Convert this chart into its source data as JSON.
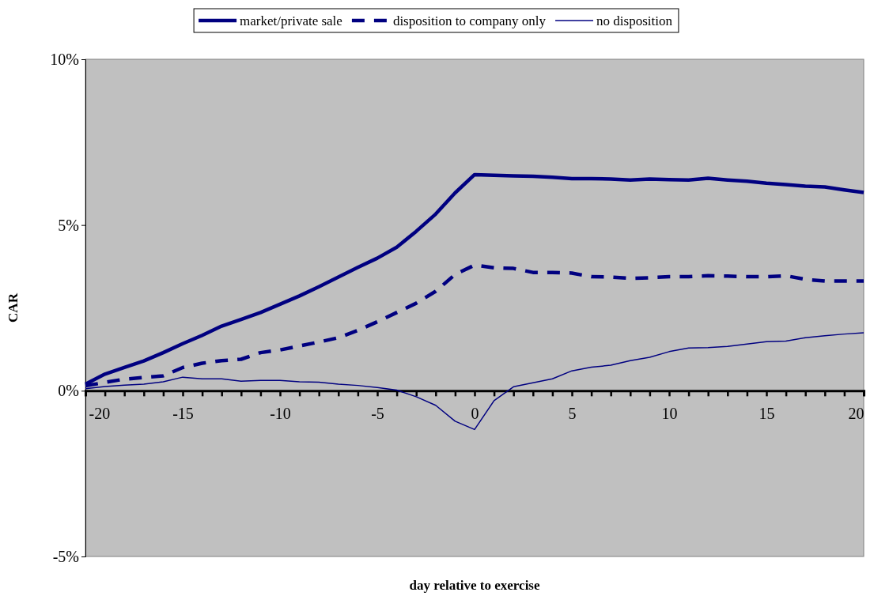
{
  "chart_data": {
    "type": "line",
    "xlabel": "day relative to exercise",
    "ylabel": "CAR",
    "x": [
      -20,
      -19,
      -18,
      -17,
      -16,
      -15,
      -14,
      -13,
      -12,
      -11,
      -10,
      -9,
      -8,
      -7,
      -6,
      -5,
      -4,
      -3,
      -2,
      -1,
      0,
      1,
      2,
      3,
      4,
      5,
      6,
      7,
      8,
      9,
      10,
      11,
      12,
      13,
      14,
      15,
      16,
      17,
      18,
      19,
      20
    ],
    "series": [
      {
        "name": "market/private sale",
        "color": "#000080",
        "line_style": "solid",
        "values": [
          0.2,
          0.5,
          0.7,
          0.9,
          1.15,
          1.42,
          1.67,
          1.95,
          2.15,
          2.36,
          2.61,
          2.86,
          3.14,
          3.43,
          3.72,
          4.0,
          4.33,
          4.81,
          5.33,
          5.97,
          6.52,
          6.5,
          6.48,
          6.47,
          6.44,
          6.4,
          6.4,
          6.39,
          6.36,
          6.39,
          6.37,
          6.36,
          6.41,
          6.36,
          6.32,
          6.26,
          6.22,
          6.17,
          6.15,
          6.06,
          5.98
        ]
      },
      {
        "name": "disposition to company only",
        "color": "#000080",
        "line_style": "dashed",
        "values": [
          0.15,
          0.25,
          0.35,
          0.4,
          0.45,
          0.7,
          0.83,
          0.91,
          0.95,
          1.15,
          1.23,
          1.35,
          1.47,
          1.6,
          1.82,
          2.08,
          2.36,
          2.64,
          3.0,
          3.51,
          3.79,
          3.71,
          3.69,
          3.57,
          3.57,
          3.55,
          3.44,
          3.43,
          3.39,
          3.41,
          3.44,
          3.44,
          3.47,
          3.46,
          3.44,
          3.44,
          3.47,
          3.36,
          3.31,
          3.31,
          3.31
        ]
      },
      {
        "name": "no disposition",
        "color": "#000080",
        "line_style": "solid",
        "values": [
          0.06,
          0.13,
          0.17,
          0.2,
          0.27,
          0.41,
          0.36,
          0.36,
          0.29,
          0.31,
          0.31,
          0.27,
          0.26,
          0.2,
          0.16,
          0.1,
          0.02,
          -0.18,
          -0.44,
          -0.92,
          -1.17,
          -0.3,
          0.12,
          0.24,
          0.36,
          0.6,
          0.71,
          0.77,
          0.91,
          1.01,
          1.18,
          1.29,
          1.3,
          1.34,
          1.41,
          1.48,
          1.5,
          1.6,
          1.66,
          1.71,
          1.75
        ]
      }
    ],
    "xlim": [
      -20,
      20
    ],
    "xticks": [
      -20,
      {
        "value": -19,
        "label": null
      },
      {
        "value": -18,
        "label": null
      },
      {
        "value": -17,
        "label": null
      },
      {
        "value": -16,
        "label": null
      },
      -15,
      {
        "value": -14,
        "label": null
      },
      {
        "value": -13,
        "label": null
      },
      {
        "value": -12,
        "label": null
      },
      {
        "value": -11,
        "label": null
      },
      -10,
      {
        "value": -9,
        "label": null
      },
      {
        "value": -8,
        "label": null
      },
      {
        "value": -7,
        "label": null
      },
      {
        "value": -6,
        "label": null
      },
      -5,
      {
        "value": -4,
        "label": null
      },
      {
        "value": -3,
        "label": null
      },
      {
        "value": -2,
        "label": null
      },
      {
        "value": -1,
        "label": null
      },
      0,
      {
        "value": 1,
        "label": null
      },
      {
        "value": 2,
        "label": null
      },
      {
        "value": 3,
        "label": null
      },
      {
        "value": 4,
        "label": null
      },
      5,
      {
        "value": 6,
        "label": null
      },
      {
        "value": 7,
        "label": null
      },
      {
        "value": 8,
        "label": null
      },
      {
        "value": 9,
        "label": null
      },
      10,
      {
        "value": 11,
        "label": null
      },
      {
        "value": 12,
        "label": null
      },
      {
        "value": 13,
        "label": null
      },
      {
        "value": 14,
        "label": null
      },
      15,
      {
        "value": 16,
        "label": null
      },
      {
        "value": 17,
        "label": null
      },
      {
        "value": 18,
        "label": null
      },
      {
        "value": 19,
        "label": null
      },
      20
    ],
    "ylim": [
      -5,
      10
    ],
    "yticks": [
      {
        "value": -5,
        "label": "-5%"
      },
      {
        "value": 0,
        "label": "0%"
      },
      {
        "value": 5,
        "label": "5%"
      },
      {
        "value": 10,
        "label": "10%"
      }
    ],
    "grid": false,
    "legend": "top",
    "marker": "none"
  }
}
